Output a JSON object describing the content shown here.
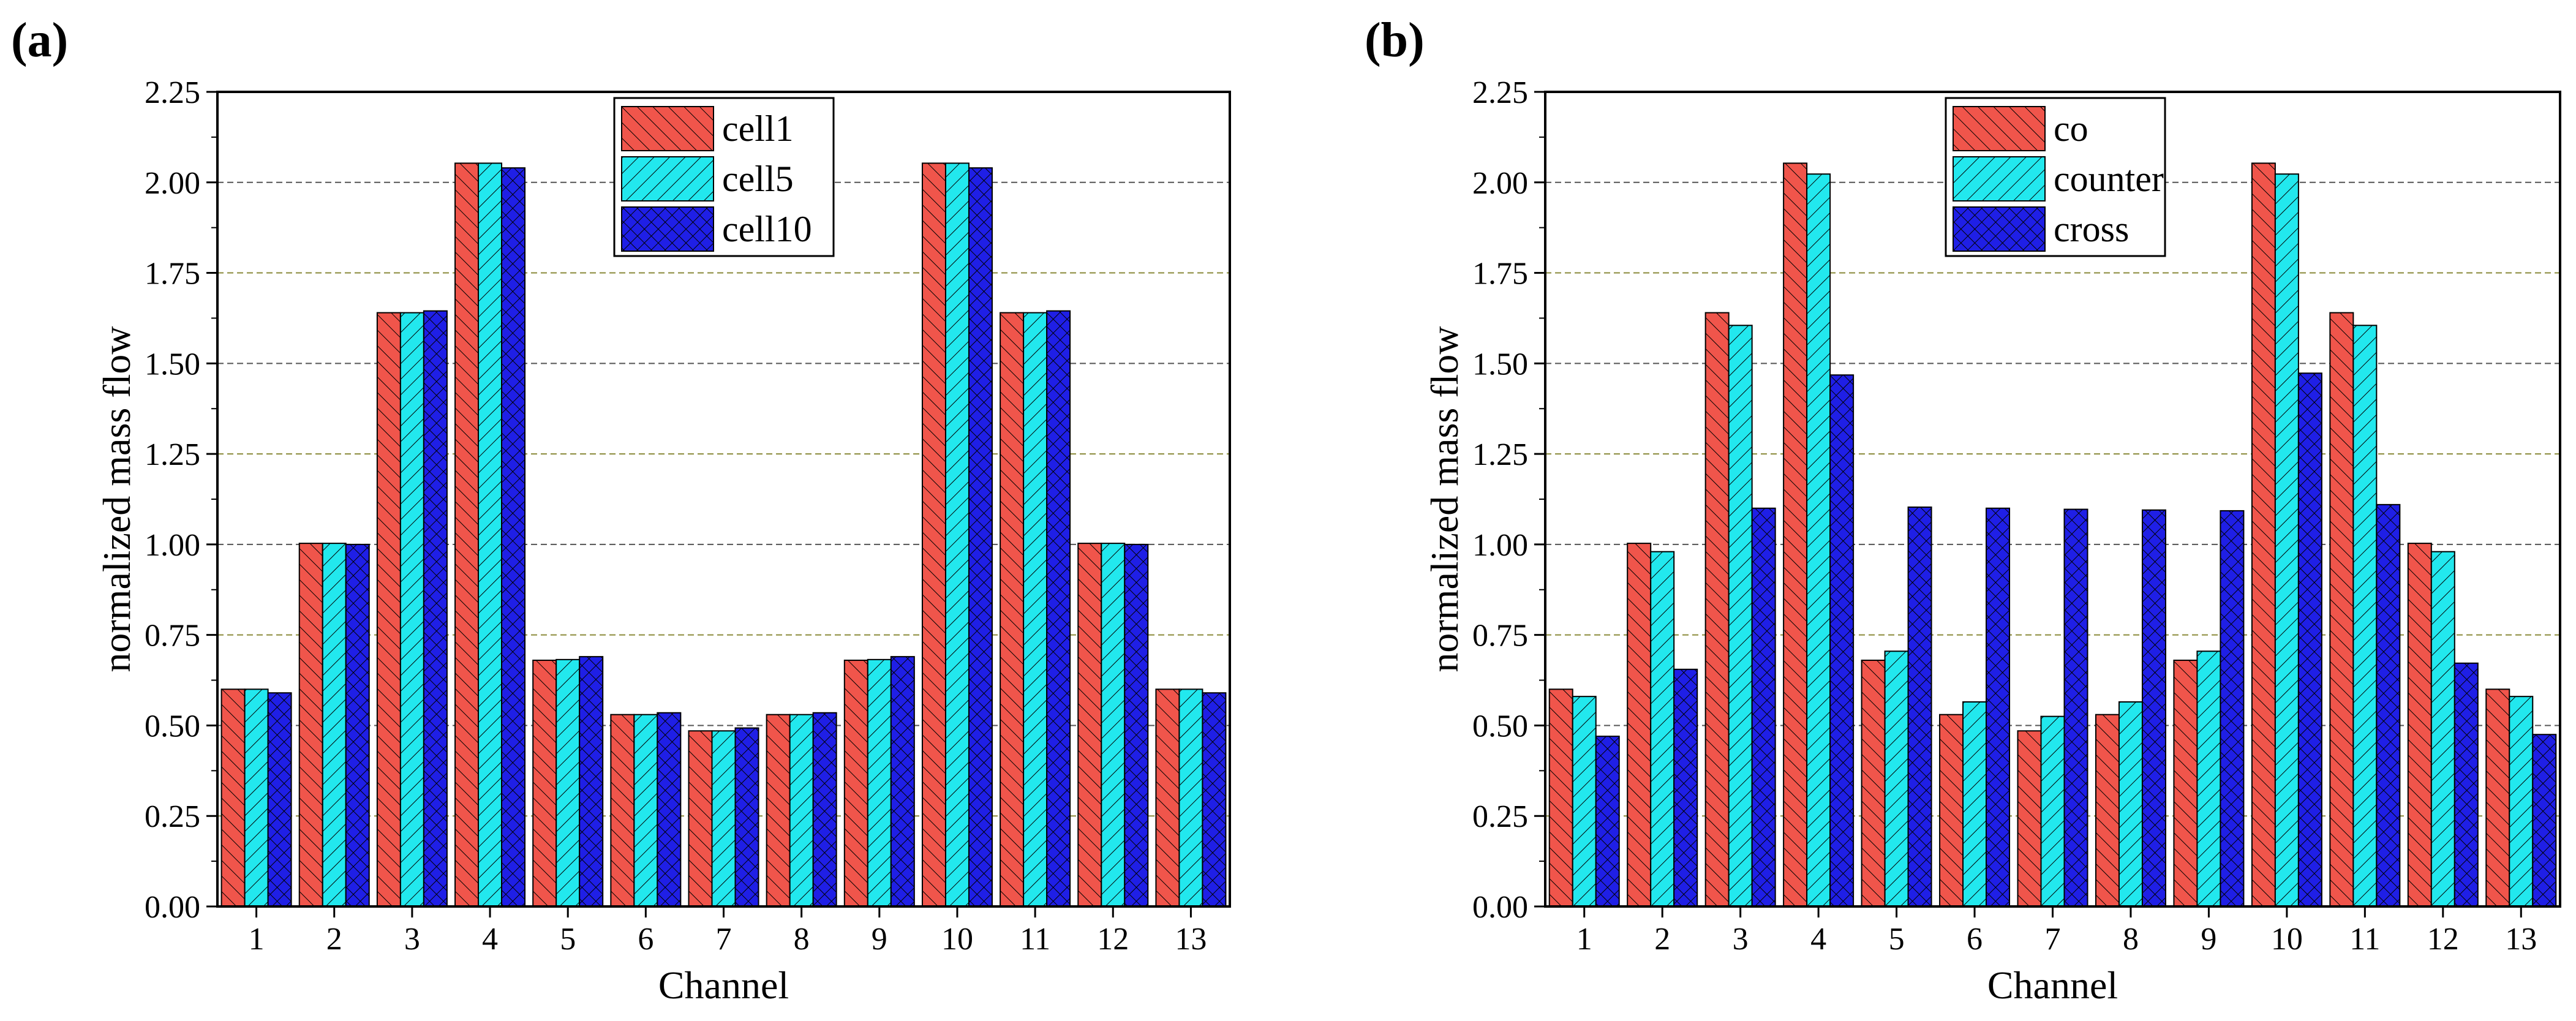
{
  "colors": {
    "series1": "#f0554b",
    "series2": "#22e8ee",
    "series3": "#1f1fe6",
    "grid_major": "#555555",
    "grid_minor": "#8a8a3a"
  },
  "chart_data": [
    {
      "panel_label": "(a)",
      "type": "bar",
      "title": "",
      "xlabel": "Channel",
      "ylabel": "normalized mass flow",
      "ylim": [
        0,
        2.25
      ],
      "yticks": [
        "0.00",
        "0.25",
        "0.50",
        "0.75",
        "1.00",
        "1.25",
        "1.50",
        "1.75",
        "2.00",
        "2.25"
      ],
      "categories": [
        "1",
        "2",
        "3",
        "4",
        "5",
        "6",
        "7",
        "8",
        "9",
        "10",
        "11",
        "12",
        "13"
      ],
      "legend_position": "top-center",
      "grid": "horizontal dashed",
      "series": [
        {
          "name": "cell1",
          "hatch": "diagonal-back",
          "values": [
            0.6,
            1.003,
            1.64,
            2.053,
            0.68,
            0.53,
            0.485,
            0.53,
            0.68,
            2.053,
            1.64,
            1.003,
            0.6
          ]
        },
        {
          "name": "cell5",
          "hatch": "diagonal-forward",
          "values": [
            0.6,
            1.003,
            1.64,
            2.053,
            0.682,
            0.53,
            0.485,
            0.53,
            0.682,
            2.053,
            1.64,
            1.003,
            0.6
          ]
        },
        {
          "name": "cell10",
          "hatch": "crosshatch",
          "values": [
            0.59,
            1.0,
            1.645,
            2.04,
            0.69,
            0.535,
            0.493,
            0.535,
            0.69,
            2.04,
            1.645,
            1.0,
            0.59
          ]
        }
      ]
    },
    {
      "panel_label": "(b)",
      "type": "bar",
      "title": "",
      "xlabel": "Channel",
      "ylabel": "normalized mass flow",
      "ylim": [
        0,
        2.25
      ],
      "yticks": [
        "0.00",
        "0.25",
        "0.50",
        "0.75",
        "1.00",
        "1.25",
        "1.50",
        "1.75",
        "2.00",
        "2.25"
      ],
      "categories": [
        "1",
        "2",
        "3",
        "4",
        "5",
        "6",
        "7",
        "8",
        "9",
        "10",
        "11",
        "12",
        "13"
      ],
      "legend_position": "top-center",
      "grid": "horizontal dashed",
      "series": [
        {
          "name": "co",
          "hatch": "diagonal-back",
          "values": [
            0.6,
            1.003,
            1.64,
            2.053,
            0.68,
            0.53,
            0.485,
            0.53,
            0.68,
            2.053,
            1.64,
            1.003,
            0.6
          ]
        },
        {
          "name": "counter",
          "hatch": "diagonal-forward",
          "values": [
            0.58,
            0.98,
            1.605,
            2.023,
            0.705,
            0.565,
            0.525,
            0.565,
            0.705,
            2.023,
            1.605,
            0.98,
            0.58
          ]
        },
        {
          "name": "cross",
          "hatch": "crosshatch",
          "values": [
            0.47,
            0.655,
            1.1,
            1.468,
            1.103,
            1.1,
            1.097,
            1.095,
            1.093,
            1.473,
            1.11,
            0.672,
            0.475
          ]
        }
      ]
    }
  ]
}
